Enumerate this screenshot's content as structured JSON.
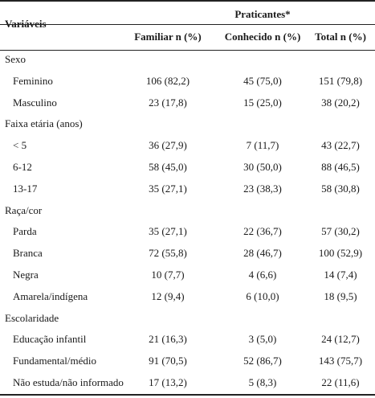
{
  "table": {
    "var_header": "Variáveis",
    "group_header": "Praticantes*",
    "col_headers": [
      "Familiar n (%)",
      "Conhecido n (%)",
      "Total n (%)"
    ],
    "rows": [
      {
        "kind": "cat",
        "label": "Sexo"
      },
      {
        "kind": "data",
        "label": "Feminino",
        "familiar": "106 (82,2)",
        "conhecido": "45 (75,0)",
        "total": "151 (79,8)"
      },
      {
        "kind": "data",
        "label": "Masculino",
        "familiar": "23 (17,8)",
        "conhecido": "15 (25,0)",
        "total": "38 (20,2)"
      },
      {
        "kind": "cat",
        "label": "Faixa etária (anos)"
      },
      {
        "kind": "data",
        "label": "< 5",
        "familiar": "36 (27,9)",
        "conhecido": "7 (11,7)",
        "total": "43 (22,7)"
      },
      {
        "kind": "data",
        "label": "6-12",
        "familiar": "58 (45,0)",
        "conhecido": "30 (50,0)",
        "total": "88 (46,5)"
      },
      {
        "kind": "data",
        "label": "13-17",
        "familiar": "35 (27,1)",
        "conhecido": "23 (38,3)",
        "total": "58 (30,8)"
      },
      {
        "kind": "cat",
        "label": "Raça/cor"
      },
      {
        "kind": "data",
        "label": "Parda",
        "familiar": "35 (27,1)",
        "conhecido": "22 (36,7)",
        "total": "57 (30,2)"
      },
      {
        "kind": "data",
        "label": "Branca",
        "familiar": "72 (55,8)",
        "conhecido": "28 (46,7)",
        "total": "100 (52,9)"
      },
      {
        "kind": "data",
        "label": "Negra",
        "familiar": "10 (7,7)",
        "conhecido": "4 (6,6)",
        "total": "14 (7,4)"
      },
      {
        "kind": "data",
        "label": "Amarela/indígena",
        "familiar": "12 (9,4)",
        "conhecido": "6 (10,0)",
        "total": "18 (9,5)"
      },
      {
        "kind": "cat",
        "label": "Escolaridade"
      },
      {
        "kind": "data",
        "label": "Educação infantil",
        "familiar": "21 (16,3)",
        "conhecido": "3 (5,0)",
        "total": "24 (12,7)"
      },
      {
        "kind": "data",
        "label": "Fundamental/médio",
        "familiar": "91 (70,5)",
        "conhecido": "52 (86,7)",
        "total": "143 (75,7)"
      },
      {
        "kind": "data",
        "label": "Não estuda/não informado",
        "familiar": "17 (13,2)",
        "conhecido": "5 (8,3)",
        "total": "22 (11,6)"
      }
    ]
  }
}
